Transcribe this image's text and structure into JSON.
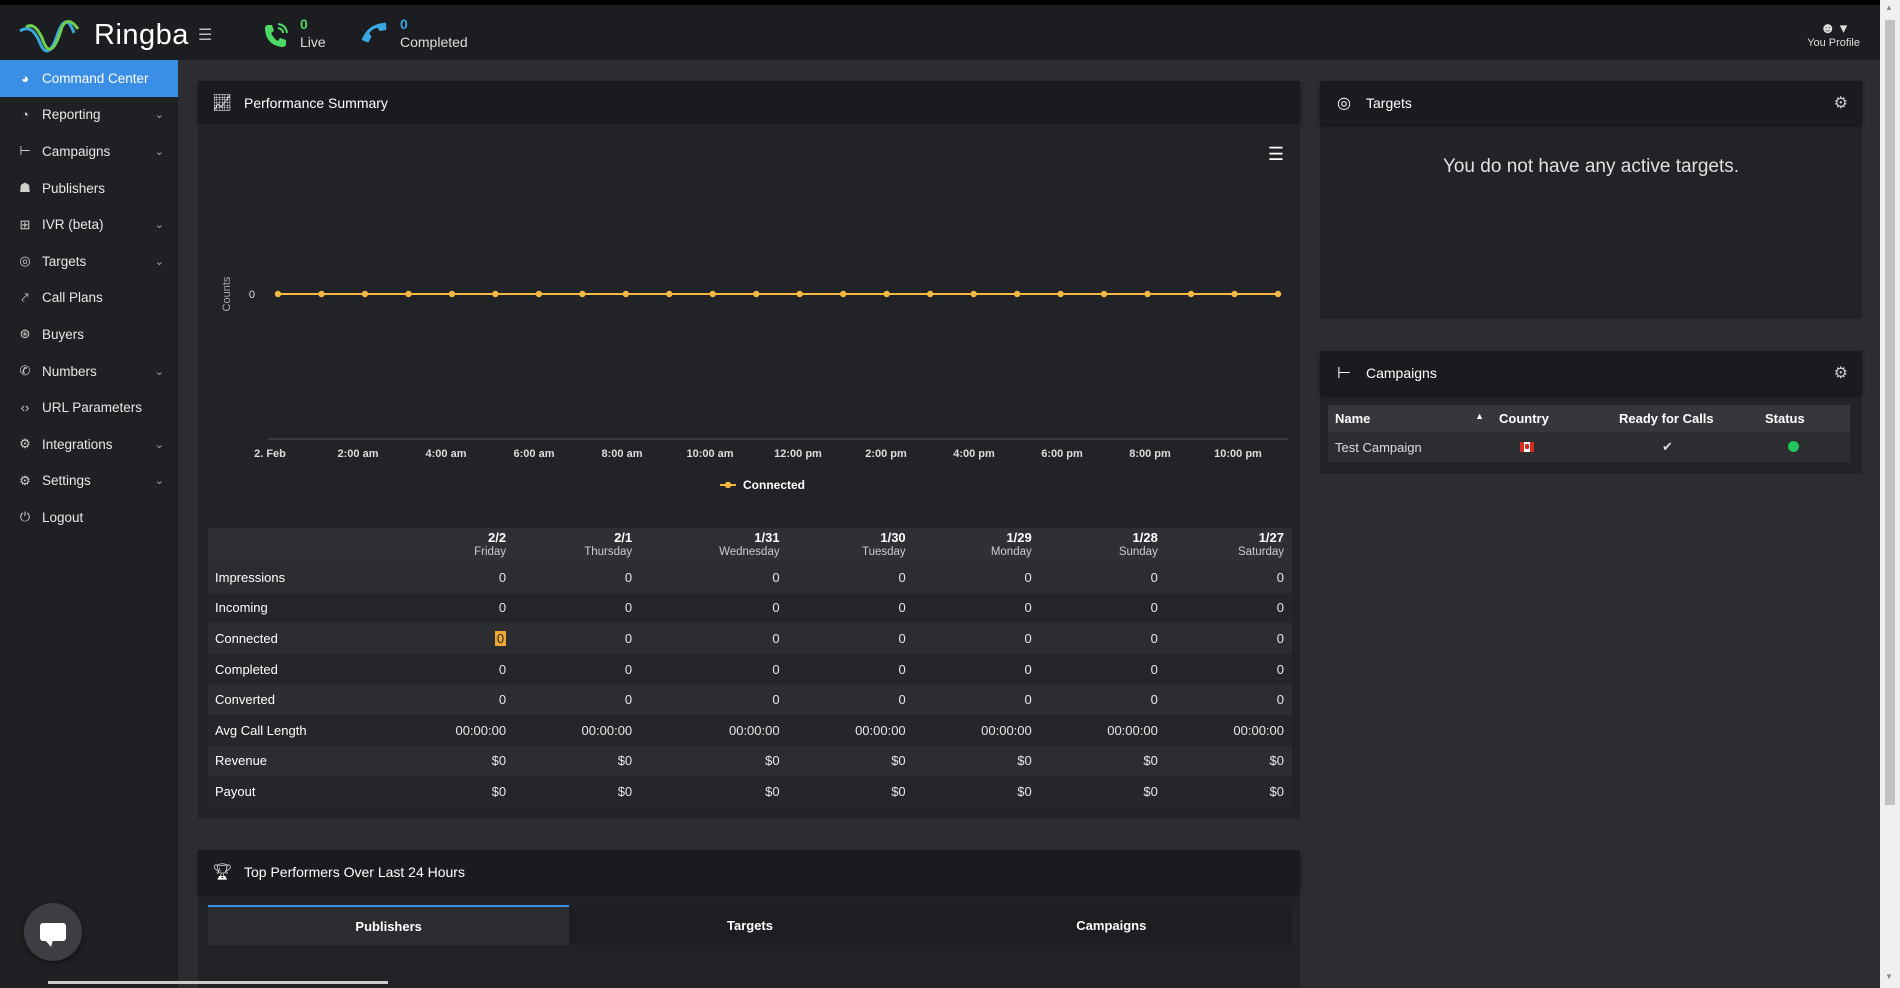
{
  "brand": {
    "name": "Ringba"
  },
  "topbar": {
    "live_count": "0",
    "live_label": "Live",
    "completed_count": "0",
    "completed_label": "Completed",
    "profile_label": "You Profile"
  },
  "sidebar": {
    "items": [
      {
        "label": "Command Center",
        "icon": "dashboard-icon",
        "active": true
      },
      {
        "label": "Reporting",
        "icon": "pie-chart-icon",
        "chevron": true
      },
      {
        "label": "Campaigns",
        "icon": "sitemap-icon",
        "chevron": true
      },
      {
        "label": "Publishers",
        "icon": "users-icon"
      },
      {
        "label": "IVR (beta)",
        "icon": "hierarchy-icon",
        "chevron": true
      },
      {
        "label": "Targets",
        "icon": "target-icon",
        "chevron": true
      },
      {
        "label": "Call Plans",
        "icon": "route-icon"
      },
      {
        "label": "Buyers",
        "icon": "buyers-icon"
      },
      {
        "label": "Numbers",
        "icon": "phone-icon",
        "chevron": true
      },
      {
        "label": "URL Parameters",
        "icon": "code-icon"
      },
      {
        "label": "Integrations",
        "icon": "cogs-icon",
        "chevron": true
      },
      {
        "label": "Settings",
        "icon": "gear-icon",
        "chevron": true
      },
      {
        "label": "Logout",
        "icon": "power-icon"
      }
    ]
  },
  "performance": {
    "title": "Performance Summary",
    "chart_data": {
      "type": "line",
      "ylabel": "Counts",
      "y_ticks": [
        "0"
      ],
      "x_ticks": [
        "2. Feb",
        "2:00 am",
        "4:00 am",
        "6:00 am",
        "8:00 am",
        "10:00 am",
        "12:00 pm",
        "2:00 pm",
        "4:00 pm",
        "6:00 pm",
        "8:00 pm",
        "10:00 pm"
      ],
      "series": [
        {
          "name": "Connected",
          "color": "#f5b942",
          "values": [
            0,
            0,
            0,
            0,
            0,
            0,
            0,
            0,
            0,
            0,
            0,
            0,
            0,
            0,
            0,
            0,
            0,
            0,
            0,
            0,
            0,
            0,
            0,
            0
          ]
        }
      ]
    },
    "table": {
      "columns": [
        {
          "date": "2/2",
          "day": "Friday"
        },
        {
          "date": "2/1",
          "day": "Thursday"
        },
        {
          "date": "1/31",
          "day": "Wednesday"
        },
        {
          "date": "1/30",
          "day": "Tuesday"
        },
        {
          "date": "1/29",
          "day": "Monday"
        },
        {
          "date": "1/28",
          "day": "Sunday"
        },
        {
          "date": "1/27",
          "day": "Saturday"
        }
      ],
      "rows": [
        {
          "label": "Impressions",
          "values": [
            "0",
            "0",
            "0",
            "0",
            "0",
            "0",
            "0"
          ]
        },
        {
          "label": "Incoming",
          "values": [
            "0",
            "0",
            "0",
            "0",
            "0",
            "0",
            "0"
          ]
        },
        {
          "label": "Connected",
          "values": [
            "0",
            "0",
            "0",
            "0",
            "0",
            "0",
            "0"
          ]
        },
        {
          "label": "Completed",
          "values": [
            "0",
            "0",
            "0",
            "0",
            "0",
            "0",
            "0"
          ]
        },
        {
          "label": "Converted",
          "values": [
            "0",
            "0",
            "0",
            "0",
            "0",
            "0",
            "0"
          ]
        },
        {
          "label": "Avg Call Length",
          "values": [
            "00:00:00",
            "00:00:00",
            "00:00:00",
            "00:00:00",
            "00:00:00",
            "00:00:00",
            "00:00:00"
          ]
        },
        {
          "label": "Revenue",
          "values": [
            "$0",
            "$0",
            "$0",
            "$0",
            "$0",
            "$0",
            "$0"
          ]
        },
        {
          "label": "Payout",
          "values": [
            "$0",
            "$0",
            "$0",
            "$0",
            "$0",
            "$0",
            "$0"
          ]
        }
      ]
    }
  },
  "targets": {
    "title": "Targets",
    "empty_message": "You do not have any active targets."
  },
  "campaigns": {
    "title": "Campaigns",
    "headers": {
      "name": "Name",
      "country": "Country",
      "ready": "Ready for Calls",
      "status": "Status"
    },
    "rows": [
      {
        "name": "Test Campaign",
        "country_flag": "canada-flag-icon",
        "ready": "✔",
        "status_color": "#22c55e"
      }
    ]
  },
  "top_performers": {
    "title": "Top Performers Over Last 24 Hours",
    "tabs": [
      {
        "label": "Publishers",
        "active": true
      },
      {
        "label": "Targets"
      },
      {
        "label": "Campaigns"
      }
    ]
  }
}
